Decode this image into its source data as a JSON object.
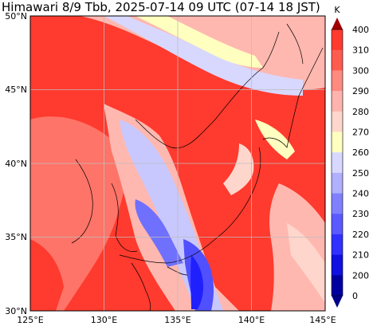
{
  "title": "Himawari 8/9 Tbb, 2025-07-14 09 UTC (07-14 18 JST)",
  "map": {
    "lon_ticks": [
      "125°E",
      "130°E",
      "135°E",
      "140°E",
      "145°E"
    ],
    "lat_ticks": [
      "50°N",
      "45°N",
      "40°N",
      "35°N",
      "30°N"
    ],
    "extent": {
      "lon": [
        125,
        145
      ],
      "lat": [
        30,
        50
      ]
    },
    "gridlines": true
  },
  "colorbar": {
    "unit": "K",
    "labels": [
      "400",
      "310",
      "300",
      "290",
      "280",
      "270",
      "260",
      "250",
      "240",
      "230",
      "220",
      "210",
      "200",
      "0"
    ],
    "colors": [
      "#ff3a2e",
      "#ff5c50",
      "#ff8a80",
      "#ffb3ad",
      "#ffd6cc",
      "#ffffc0",
      "#d8d8ff",
      "#b0b0ff",
      "#8080ff",
      "#5a5aff",
      "#3030ff",
      "#1010e0",
      "#0000a0"
    ],
    "top_color": "#a00000",
    "bottom_color": "#00008a"
  },
  "regions_colors": {
    "warm": "#ff3a2e",
    "warm2": "#ff6a60",
    "pink": "#ffb0a8",
    "cream": "#ffffc0",
    "lav": "#c8c8ff",
    "blue": "#7070ff",
    "deep": "#2020ff"
  }
}
